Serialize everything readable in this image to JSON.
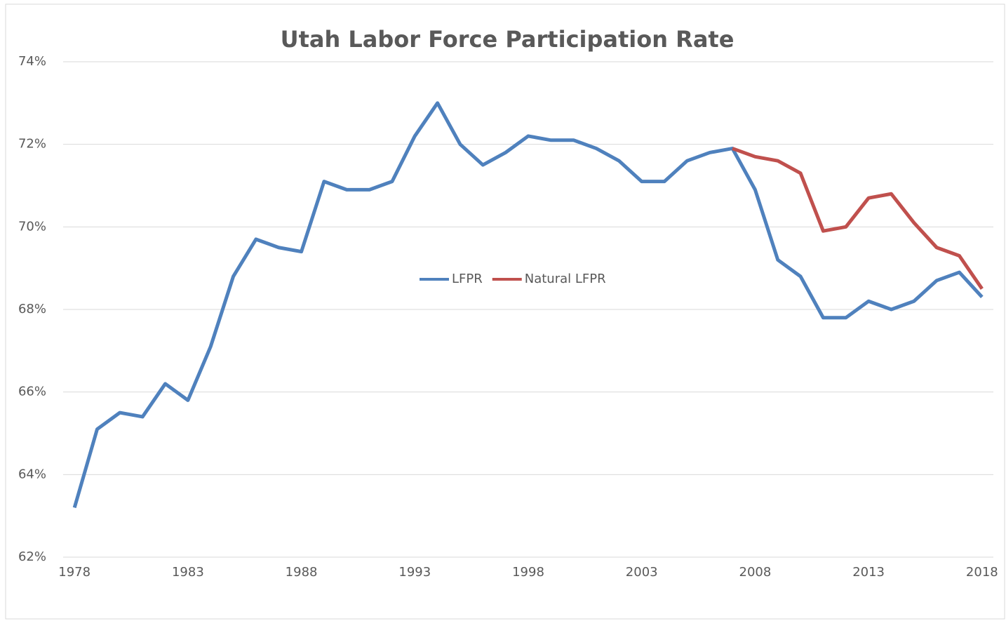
{
  "chart_data": {
    "type": "line",
    "title": "Utah Labor Force Participation Rate",
    "x": [
      1978,
      1979,
      1980,
      1981,
      1982,
      1983,
      1984,
      1985,
      1986,
      1987,
      1988,
      1989,
      1990,
      1991,
      1992,
      1993,
      1994,
      1995,
      1996,
      1997,
      1998,
      1999,
      2000,
      2001,
      2002,
      2003,
      2004,
      2005,
      2006,
      2007,
      2008,
      2009,
      2010,
      2011,
      2012,
      2013,
      2014,
      2015,
      2016,
      2017,
      2018
    ],
    "series": [
      {
        "name": "LFPR",
        "color": "#4f81bd",
        "values": [
          63.2,
          65.1,
          65.5,
          65.4,
          66.2,
          65.8,
          67.1,
          68.8,
          69.7,
          69.5,
          69.4,
          71.1,
          70.9,
          70.9,
          71.1,
          72.2,
          73.0,
          72.0,
          71.5,
          71.8,
          72.2,
          72.1,
          72.1,
          71.9,
          71.6,
          71.1,
          71.1,
          71.6,
          71.8,
          71.9,
          70.9,
          69.2,
          68.8,
          67.8,
          67.8,
          68.2,
          68.0,
          68.2,
          68.7,
          68.9,
          68.3
        ]
      },
      {
        "name": "Natural LFPR",
        "color": "#c0504d",
        "values": [
          null,
          null,
          null,
          null,
          null,
          null,
          null,
          null,
          null,
          null,
          null,
          null,
          null,
          null,
          null,
          null,
          null,
          null,
          null,
          null,
          null,
          null,
          null,
          null,
          null,
          null,
          null,
          null,
          null,
          71.9,
          71.7,
          71.6,
          71.3,
          69.9,
          70.0,
          70.7,
          70.8,
          70.1,
          69.5,
          69.3,
          68.5
        ]
      }
    ],
    "xlim": [
      1977.5,
      2018.5
    ],
    "xticks": [
      1978,
      1983,
      1988,
      1993,
      1998,
      2003,
      2008,
      2013,
      2018
    ],
    "ylim": [
      62,
      74
    ],
    "yticks": [
      {
        "value": 62,
        "label": "62%"
      },
      {
        "value": 64,
        "label": "64%"
      },
      {
        "value": 66,
        "label": "66%"
      },
      {
        "value": 68,
        "label": "68%"
      },
      {
        "value": 70,
        "label": "70%"
      },
      {
        "value": 72,
        "label": "72%"
      },
      {
        "value": 74,
        "label": "74%"
      }
    ],
    "grid": true,
    "legend": "center"
  }
}
